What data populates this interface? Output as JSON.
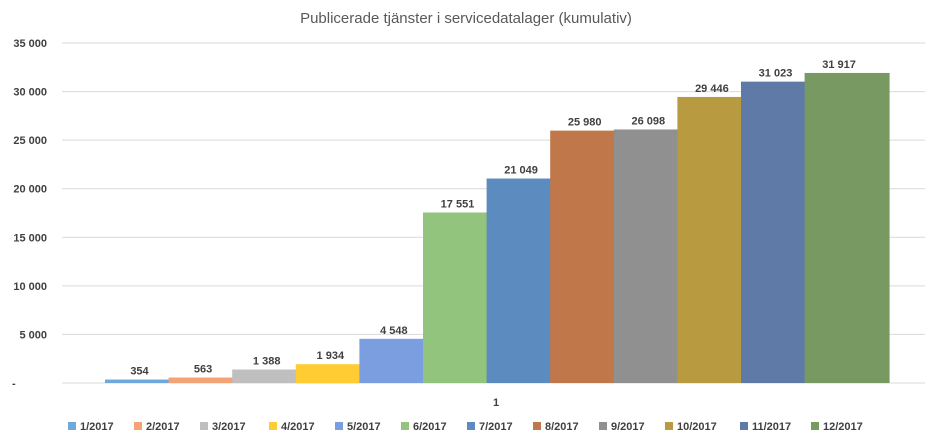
{
  "chart_data": {
    "type": "bar",
    "title": "Publicerade tjänster i servicedatalager (kumulativ)",
    "categories": [
      "1"
    ],
    "series": [
      {
        "name": "1/2017",
        "values": [
          354
        ],
        "label": "354",
        "color": "#6fa8dc"
      },
      {
        "name": "2/2017",
        "values": [
          563
        ],
        "label": "563",
        "color": "#f4a374"
      },
      {
        "name": "3/2017",
        "values": [
          1388
        ],
        "label": "1 388",
        "color": "#bfbfbf"
      },
      {
        "name": "4/2017",
        "values": [
          1934
        ],
        "label": "1 934",
        "color": "#ffcc33"
      },
      {
        "name": "5/2017",
        "values": [
          4548
        ],
        "label": "4 548",
        "color": "#7b9ee0"
      },
      {
        "name": "6/2017",
        "values": [
          17551
        ],
        "label": "17 551",
        "color": "#93c47d"
      },
      {
        "name": "7/2017",
        "values": [
          21049
        ],
        "label": "21 049",
        "color": "#5b8bbf"
      },
      {
        "name": "8/2017",
        "values": [
          25980
        ],
        "label": "25 980",
        "color": "#c0774a"
      },
      {
        "name": "9/2017",
        "values": [
          26098
        ],
        "label": "26 098",
        "color": "#909090"
      },
      {
        "name": "10/2017",
        "values": [
          29446
        ],
        "label": "29 446",
        "color": "#b89a40"
      },
      {
        "name": "11/2017",
        "values": [
          31023
        ],
        "label": "31 023",
        "color": "#5f7aa6"
      },
      {
        "name": "12/2017",
        "values": [
          31917
        ],
        "label": "31 917",
        "color": "#789a62"
      }
    ],
    "yticks": [
      {
        "value": 0,
        "label": "-"
      },
      {
        "value": 5000,
        "label": "5 000"
      },
      {
        "value": 10000,
        "label": "10 000"
      },
      {
        "value": 15000,
        "label": "15 000"
      },
      {
        "value": 20000,
        "label": "20 000"
      },
      {
        "value": 25000,
        "label": "25 000"
      },
      {
        "value": 30000,
        "label": "30 000"
      },
      {
        "value": 35000,
        "label": "35 000"
      }
    ],
    "ylim": [
      0,
      35000
    ],
    "grid": true,
    "legend_position": "bottom"
  }
}
